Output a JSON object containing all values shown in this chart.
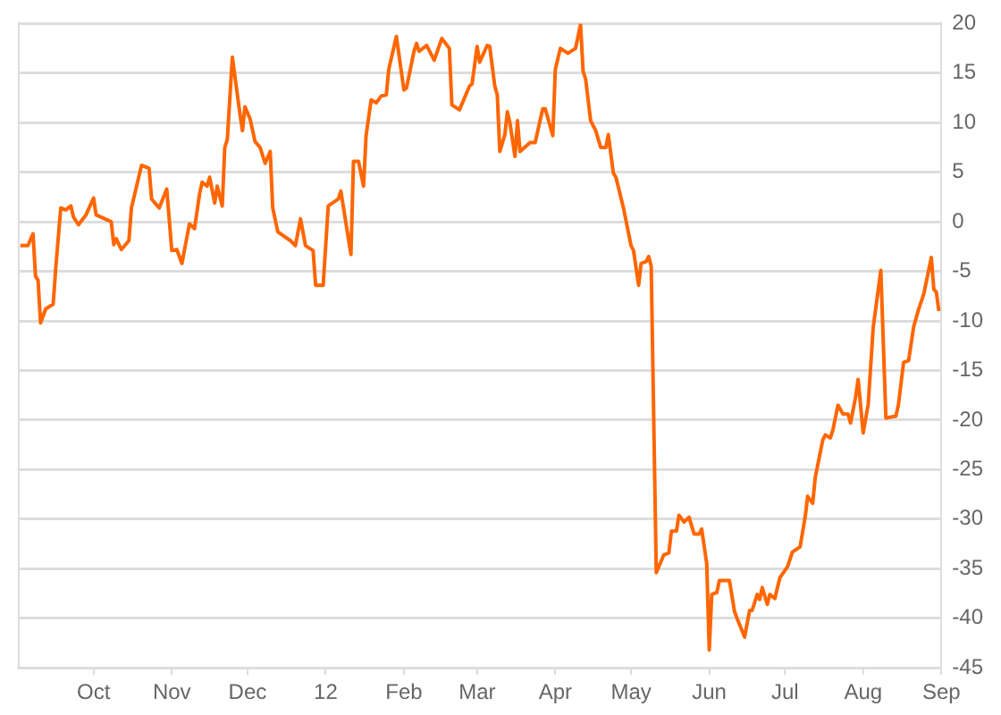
{
  "chart_data": {
    "type": "line",
    "x": [
      "2011-09-02",
      "2011-09-05",
      "2011-09-07",
      "2011-09-08",
      "2011-09-09",
      "2011-09-10",
      "2011-09-12",
      "2011-09-15",
      "2011-09-16",
      "2011-09-18",
      "2011-09-20",
      "2011-09-22",
      "2011-09-23",
      "2011-09-25",
      "2011-09-28",
      "2011-10-01",
      "2011-10-02",
      "2011-10-08",
      "2011-10-09",
      "2011-10-10",
      "2011-10-12",
      "2011-10-15",
      "2011-10-16",
      "2011-10-20",
      "2011-10-23",
      "2011-10-24",
      "2011-10-27",
      "2011-10-30",
      "2011-11-01",
      "2011-11-03",
      "2011-11-05",
      "2011-11-08",
      "2011-11-10",
      "2011-11-12",
      "2011-11-13",
      "2011-11-15",
      "2011-11-16",
      "2011-11-18",
      "2011-11-19",
      "2011-11-21",
      "2011-11-22",
      "2011-11-23",
      "2011-11-25",
      "2011-11-28",
      "2011-11-29",
      "2011-11-30",
      "2011-12-02",
      "2011-12-04",
      "2011-12-06",
      "2011-12-08",
      "2011-12-10",
      "2011-12-11",
      "2011-12-13",
      "2011-12-18",
      "2011-12-20",
      "2011-12-22",
      "2011-12-24",
      "2011-12-27",
      "2011-12-28",
      "2011-12-31",
      "2012-01-02",
      "2012-01-06",
      "2012-01-07",
      "2012-01-11",
      "2012-01-12",
      "2012-01-14",
      "2012-01-16",
      "2012-01-17",
      "2012-01-19",
      "2012-01-21",
      "2012-01-23",
      "2012-01-25",
      "2012-01-26",
      "2012-01-29",
      "2012-02-01",
      "2012-02-02",
      "2012-02-05",
      "2012-02-06",
      "2012-02-07",
      "2012-02-10",
      "2012-02-13",
      "2012-02-16",
      "2012-02-19",
      "2012-02-20",
      "2012-02-23",
      "2012-02-27",
      "2012-02-28",
      "2012-03-01",
      "2012-03-02",
      "2012-03-05",
      "2012-03-06",
      "2012-03-08",
      "2012-03-09",
      "2012-03-10",
      "2012-03-12",
      "2012-03-13",
      "2012-03-14",
      "2012-03-16",
      "2012-03-17",
      "2012-03-18",
      "2012-03-22",
      "2012-03-24",
      "2012-03-27",
      "2012-03-28",
      "2012-03-31",
      "2012-04-01",
      "2012-04-03",
      "2012-04-06",
      "2012-04-09",
      "2012-04-11",
      "2012-04-12",
      "2012-04-13",
      "2012-04-15",
      "2012-04-17",
      "2012-04-19",
      "2012-04-21",
      "2012-04-22",
      "2012-04-24",
      "2012-04-25",
      "2012-04-28",
      "2012-05-01",
      "2012-05-02",
      "2012-05-04",
      "2012-05-05",
      "2012-05-07",
      "2012-05-08",
      "2012-05-09",
      "2012-05-11",
      "2012-05-12",
      "2012-05-14",
      "2012-05-16",
      "2012-05-17",
      "2012-05-19",
      "2012-05-20",
      "2012-05-22",
      "2012-05-24",
      "2012-05-26",
      "2012-05-28",
      "2012-05-29",
      "2012-05-31",
      "2012-06-01",
      "2012-06-02",
      "2012-06-04",
      "2012-06-05",
      "2012-06-09",
      "2012-06-11",
      "2012-06-12",
      "2012-06-15",
      "2012-06-17",
      "2012-06-18",
      "2012-06-20",
      "2012-06-21",
      "2012-06-22",
      "2012-06-24",
      "2012-06-25",
      "2012-06-27",
      "2012-06-29",
      "2012-07-02",
      "2012-07-04",
      "2012-07-07",
      "2012-07-09",
      "2012-07-10",
      "2012-07-12",
      "2012-07-13",
      "2012-07-16",
      "2012-07-17",
      "2012-07-19",
      "2012-07-20",
      "2012-07-22",
      "2012-07-24",
      "2012-07-26",
      "2012-07-27",
      "2012-07-29",
      "2012-07-30",
      "2012-08-01",
      "2012-08-03",
      "2012-08-05",
      "2012-08-08",
      "2012-08-10",
      "2012-08-14",
      "2012-08-15",
      "2012-08-17",
      "2012-08-19",
      "2012-08-21",
      "2012-08-23",
      "2012-08-25",
      "2012-08-28",
      "2012-08-29",
      "2012-08-30",
      "2012-08-31"
    ],
    "values": [
      -2.4,
      -2.4,
      -1.2,
      -5.5,
      -5.9,
      -10.2,
      -8.8,
      -8.3,
      -4.7,
      1.4,
      1.2,
      1.6,
      0.5,
      -0.3,
      0.7,
      2.4,
      0.7,
      0,
      -2.3,
      -1.7,
      -2.8,
      -1.9,
      1.4,
      5.7,
      5.4,
      2.3,
      1.4,
      3.3,
      -2.9,
      -2.8,
      -4.2,
      -0.2,
      -0.7,
      2.8,
      4.0,
      3.6,
      4.5,
      1.9,
      3.6,
      1.6,
      7.5,
      8.3,
      16.6,
      10.9,
      9.2,
      11.6,
      10.4,
      8.1,
      7.5,
      5.9,
      7.1,
      1.4,
      -1.0,
      -1.9,
      -2.4,
      0.3,
      -2.4,
      -2.9,
      -6.4,
      -6.4,
      1.6,
      2.3,
      3.1,
      -3.3,
      6.1,
      6.1,
      3.6,
      8.7,
      12.3,
      12.0,
      12.7,
      12.8,
      15.4,
      18.7,
      13.3,
      13.5,
      17.2,
      18.0,
      17.2,
      17.8,
      16.3,
      18.5,
      17.5,
      11.8,
      11.3,
      13.7,
      13.9,
      17.7,
      16.1,
      17.8,
      17.7,
      13.7,
      12.8,
      7.1,
      8.8,
      11.1,
      10.0,
      6.6,
      10.2,
      7.1,
      8.0,
      8.0,
      11.4,
      11.4,
      8.7,
      15.4,
      17.5,
      17.0,
      17.5,
      19.9,
      15.2,
      14.4,
      10.2,
      9.2,
      7.5,
      7.5,
      8.8,
      4.9,
      4.5,
      1.4,
      -2.4,
      -2.9,
      -6.4,
      -4.2,
      -4.0,
      -3.5,
      -4.5,
      -35.4,
      -34.8,
      -33.6,
      -33.4,
      -31.2,
      -31.2,
      -29.6,
      -30.3,
      -29.8,
      -31.5,
      -31.5,
      -31.0,
      -34.5,
      -43.2,
      -37.6,
      -37.4,
      -36.2,
      -36.2,
      -39.3,
      -40.0,
      -41.9,
      -39.2,
      -39.2,
      -37.6,
      -38.1,
      -36.9,
      -38.6,
      -37.6,
      -38.0,
      -35.9,
      -34.8,
      -33.3,
      -32.8,
      -29.8,
      -27.7,
      -28.4,
      -25.8,
      -22.0,
      -21.5,
      -21.8,
      -21.0,
      -18.5,
      -19.4,
      -19.4,
      -20.3,
      -17.7,
      -15.9,
      -21.3,
      -18.4,
      -10.6,
      -4.9,
      -19.8,
      -19.6,
      -18.4,
      -14.2,
      -14.0,
      -10.6,
      -8.8,
      -7.3,
      -3.6,
      -6.8,
      -7.1,
      -9.0
    ],
    "color": "#ff6600",
    "xlim": [
      "2011-09-01",
      "2012-09-01"
    ],
    "xticks": [
      {
        "value": "2011-10",
        "label": "Oct"
      },
      {
        "value": "2011-11",
        "label": "Nov"
      },
      {
        "value": "2011-12",
        "label": "Dec"
      },
      {
        "value": "2012-01",
        "label": "12"
      },
      {
        "value": "2012-02",
        "label": "Feb"
      },
      {
        "value": "2012-03",
        "label": "Mar"
      },
      {
        "value": "2012-04",
        "label": "Apr"
      },
      {
        "value": "2012-05",
        "label": "May"
      },
      {
        "value": "2012-06",
        "label": "Jun"
      },
      {
        "value": "2012-07",
        "label": "Jul"
      },
      {
        "value": "2012-08",
        "label": "Aug"
      },
      {
        "value": "2012-09",
        "label": "Sep"
      }
    ],
    "ylim": [
      -45,
      20
    ],
    "yticks": [
      -45,
      -40,
      -35,
      -30,
      -25,
      -20,
      -15,
      -10,
      -5,
      0,
      5,
      10,
      15,
      20
    ],
    "grid": "y",
    "legend": false,
    "marker": "none",
    "line_style": "solid"
  }
}
